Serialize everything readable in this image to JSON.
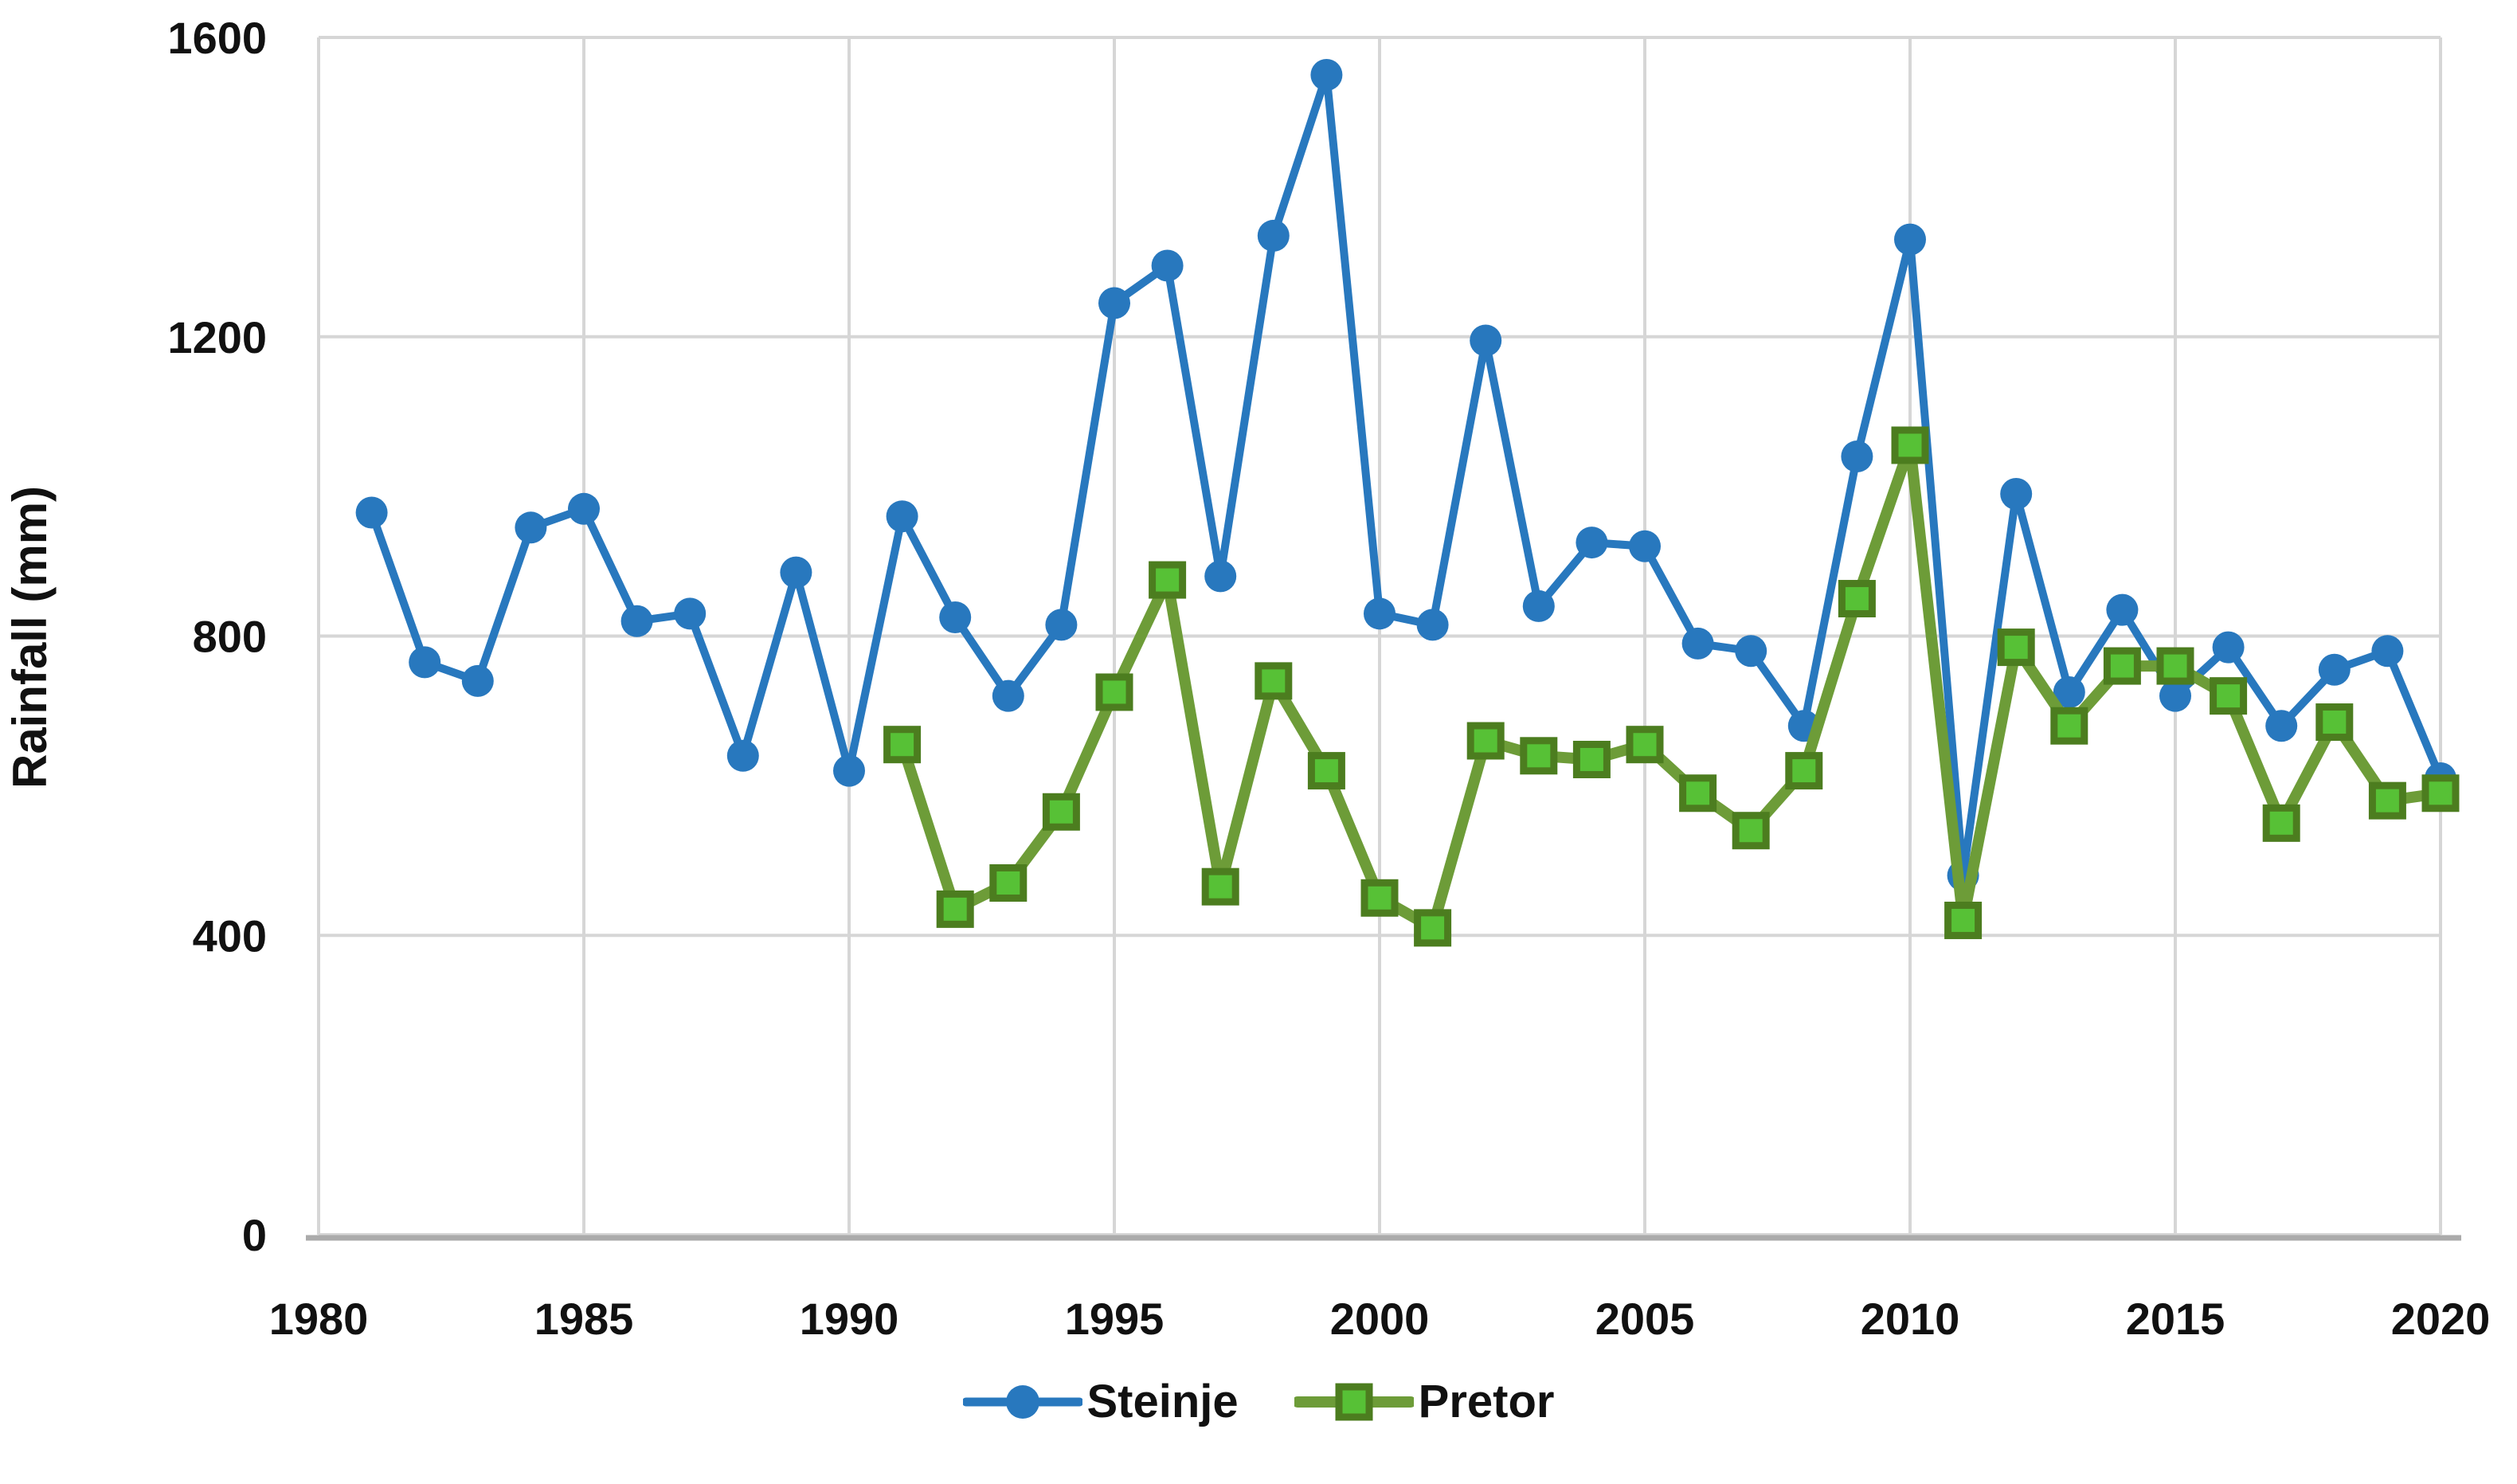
{
  "chart_data": {
    "type": "line",
    "title": "",
    "xlabel": "",
    "ylabel": "Rainfall (mm)",
    "xlim": [
      1980,
      2020
    ],
    "ylim": [
      0,
      1600
    ],
    "x_ticks": [
      1980,
      1985,
      1990,
      1995,
      2000,
      2005,
      2010,
      2015,
      2020
    ],
    "y_ticks": [
      0,
      400,
      800,
      1200,
      1600
    ],
    "grid": true,
    "legend_position": "bottom-center",
    "series": [
      {
        "name": "Steinje",
        "marker": "circle",
        "line_color": "#2878be",
        "marker_fill": "#2878be",
        "marker_stroke": "#2878be",
        "x": [
          1981,
          1982,
          1983,
          1984,
          1985,
          1986,
          1987,
          1988,
          1989,
          1990,
          1991,
          1992,
          1993,
          1994,
          1995,
          1996,
          1997,
          1998,
          1999,
          2000,
          2001,
          2002,
          2003,
          2004,
          2005,
          2006,
          2007,
          2008,
          2009,
          2010,
          2011,
          2012,
          2013,
          2014,
          2015,
          2016,
          2017,
          2018,
          2019,
          2020
        ],
        "values": [
          965,
          765,
          740,
          945,
          970,
          820,
          830,
          640,
          885,
          620,
          960,
          825,
          720,
          815,
          1245,
          1295,
          880,
          1335,
          1550,
          830,
          815,
          1195,
          840,
          925,
          920,
          790,
          780,
          680,
          1040,
          1330,
          480,
          990,
          725,
          835,
          720,
          785,
          680,
          755,
          780,
          610
        ]
      },
      {
        "name": "Pretor",
        "marker": "square",
        "line_color": "#6d9c38",
        "marker_fill": "#57c136",
        "marker_stroke": "#4c7d1f",
        "x": [
          1991,
          1992,
          1993,
          1994,
          1995,
          1996,
          1997,
          1998,
          1999,
          2000,
          2001,
          2002,
          2003,
          2004,
          2005,
          2006,
          2007,
          2008,
          2009,
          2010,
          2011,
          2012,
          2013,
          2014,
          2015,
          2016,
          2017,
          2018,
          2019,
          2020
        ],
        "values": [
          655,
          435,
          470,
          565,
          725,
          875,
          465,
          740,
          620,
          450,
          410,
          660,
          640,
          635,
          655,
          590,
          540,
          620,
          850,
          1055,
          420,
          785,
          680,
          760,
          760,
          720,
          550,
          685,
          580,
          590
        ]
      }
    ]
  },
  "style": {
    "grid_color": "#d6d6d6",
    "axis_color": "#ababab",
    "text_color": "#111111",
    "background": "#ffffff"
  }
}
